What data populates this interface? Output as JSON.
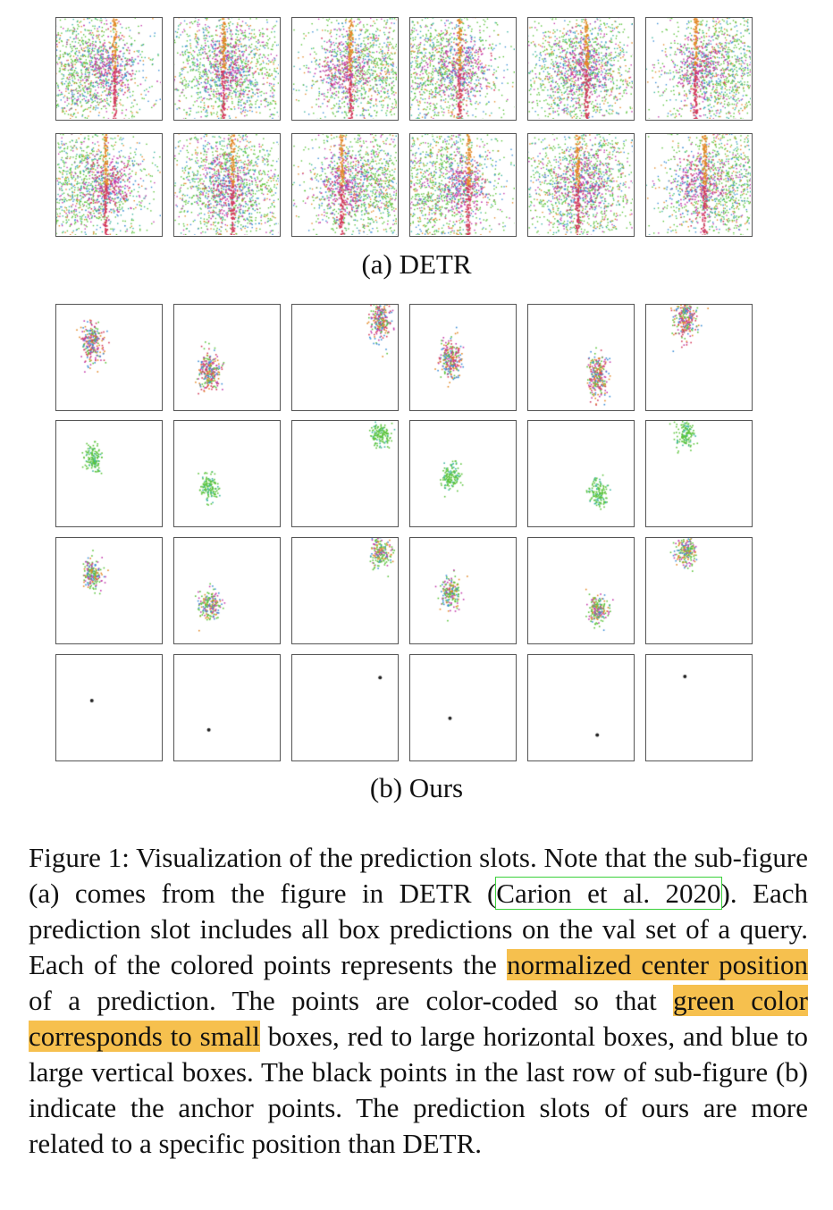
{
  "figure": {
    "subfig_a": {
      "label": "(a) DETR",
      "rows": 2,
      "cols": 6
    },
    "subfig_b": {
      "label": "(b) Ours",
      "rows": 4,
      "cols": 6
    },
    "colors": {
      "green": "#5cc43c",
      "magenta": "#c43cab",
      "blue": "#3c8ed6",
      "orange": "#e38a2a",
      "red": "#d43c5c",
      "teal": "#3cb5a0",
      "anchor": "#222222",
      "highlight": "#f6c04e",
      "citation_box": "#3bd13b"
    }
  },
  "caption": {
    "lead": "Figure 1: Visualization of the prediction slots. Note that the sub-figure (a) comes from the figure in DETR (",
    "cite_author": "Carion et al.",
    "cite_year": "2020",
    "mid1": "). Each prediction slot includes all box predictions on the val set of a query. Each of the colored points represents the ",
    "highlight1": "normalized center position",
    "mid2": " of a prediction. The points are color-coded so that ",
    "highlight2": "green color corresponds to small",
    "tail": " boxes, red to large horizontal boxes, and blue to large vertical boxes. The black points in the last row of sub-figure (b) indicate the anchor points. The prediction slots of ours are more related to a specific position than DETR."
  }
}
